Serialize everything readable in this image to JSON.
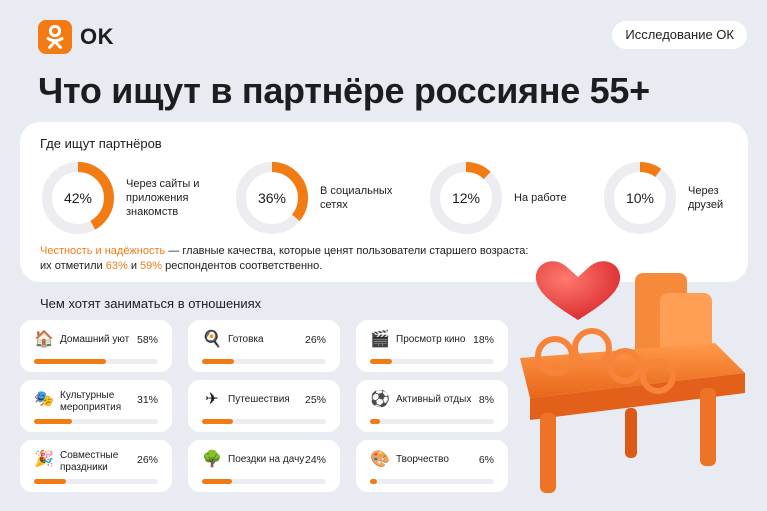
{
  "header": {
    "brand": "OK",
    "badge": "Исследование ОК"
  },
  "title": "Что ищут в партнёре россияне 55+",
  "colors": {
    "accent": "#f27b14",
    "track": "#ececf1",
    "background": "#e9ebf2"
  },
  "chart_data": [
    {
      "type": "pie",
      "title": "Где ищут партнёров",
      "categories": [
        "Через сайты и приложения знакомств",
        "В социальных сетях",
        "На работе",
        "Через друзей"
      ],
      "values": [
        42,
        36,
        12,
        10
      ],
      "labels": [
        "42%",
        "36%",
        "12%",
        "10%"
      ],
      "unit": "%"
    },
    {
      "type": "bar",
      "title": "Чем хотят заниматься в отношениях",
      "categories": [
        "Домашний уют",
        "Готовка",
        "Просмотр кино",
        "Культурные мероприятия",
        "Путешествия",
        "Активный отдых",
        "Совместные праздники",
        "Поездки на дачу",
        "Творчество"
      ],
      "values": [
        58,
        26,
        18,
        31,
        25,
        8,
        26,
        24,
        6
      ],
      "labels": [
        "58%",
        "26%",
        "18%",
        "31%",
        "25%",
        "8%",
        "26%",
        "24%",
        "6%"
      ],
      "icons": [
        "house-icon",
        "frying-pan-icon",
        "clapperboard-icon",
        "theater-masks-icon",
        "airplane-icon",
        "soccer-ball-icon",
        "party-popper-icon",
        "tree-icon",
        "palette-icon"
      ],
      "unit": "%"
    }
  ],
  "note": {
    "highlight": "Честность и надёжность",
    "text1": " — главные качества, которые ценят пользователи старшего возраста:",
    "text2": "их отметили ",
    "v1": "63%",
    "and": " и ",
    "v2": "59%",
    "text3": " респондентов соответственно."
  }
}
